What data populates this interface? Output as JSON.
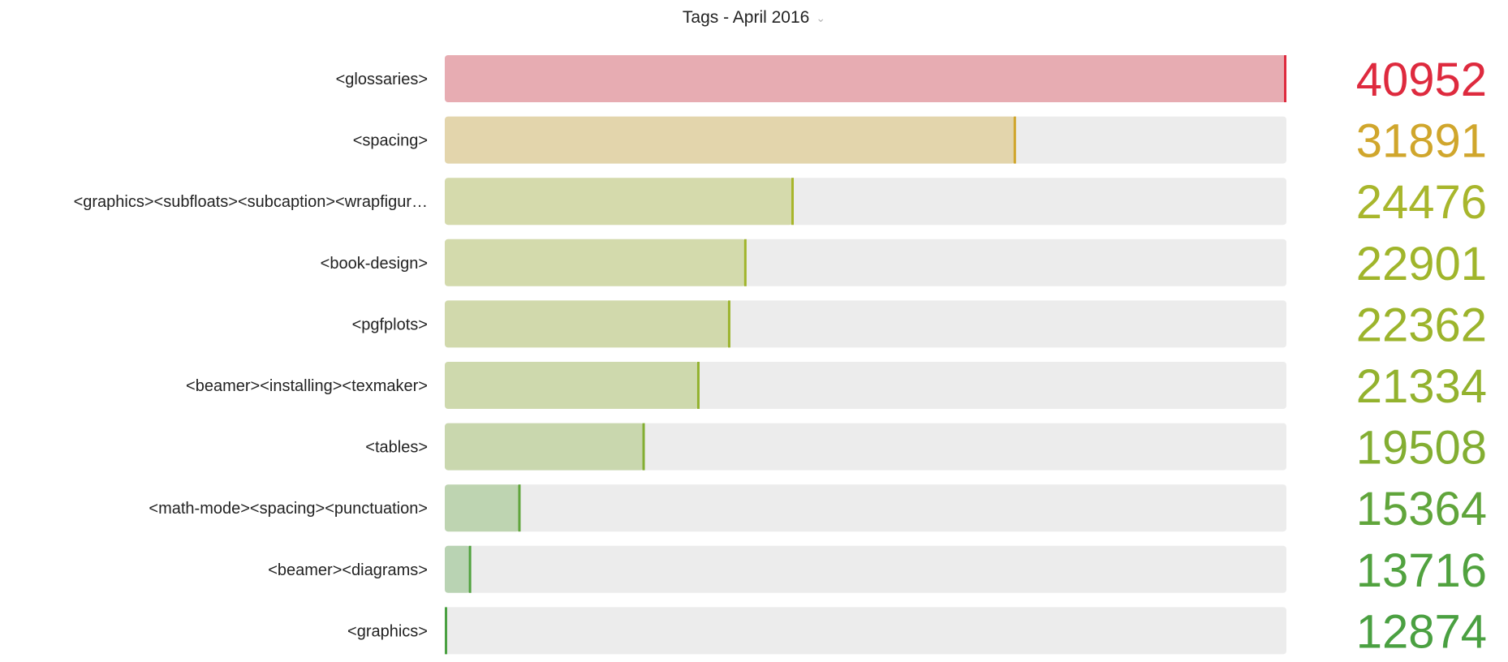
{
  "header": {
    "title": "Tags - April 2016",
    "dropdown_icon": "chevron-down-icon"
  },
  "chart_data": {
    "type": "bar",
    "orientation": "horizontal",
    "title": "Tags - April 2016",
    "categories": [
      "<glossaries>",
      "<spacing>",
      "<graphics><subfloats><subcaption><wrapfigur…",
      "<book-design>",
      "<pgfplots>",
      "<beamer><installing><texmaker>",
      "<tables>",
      "<math-mode><spacing><punctuation>",
      "<beamer><diagrams>",
      "<graphics>"
    ],
    "values": [
      40952,
      31891,
      24476,
      22901,
      22362,
      21334,
      19508,
      15364,
      13716,
      12874
    ],
    "xlim": [
      12874,
      40952
    ],
    "grid": false,
    "legend": "none",
    "colors": {
      "track": "#ececec",
      "gradient_stops": [
        {
          "at": 0.0,
          "color": "#4aa041"
        },
        {
          "at": 0.35,
          "color": "#9fb52b"
        },
        {
          "at": 0.6,
          "color": "#c2b72e"
        },
        {
          "at": 0.8,
          "color": "#e58a2a"
        },
        {
          "at": 1.0,
          "color": "#de2a3e"
        }
      ],
      "fill_opacity": 0.33
    }
  }
}
